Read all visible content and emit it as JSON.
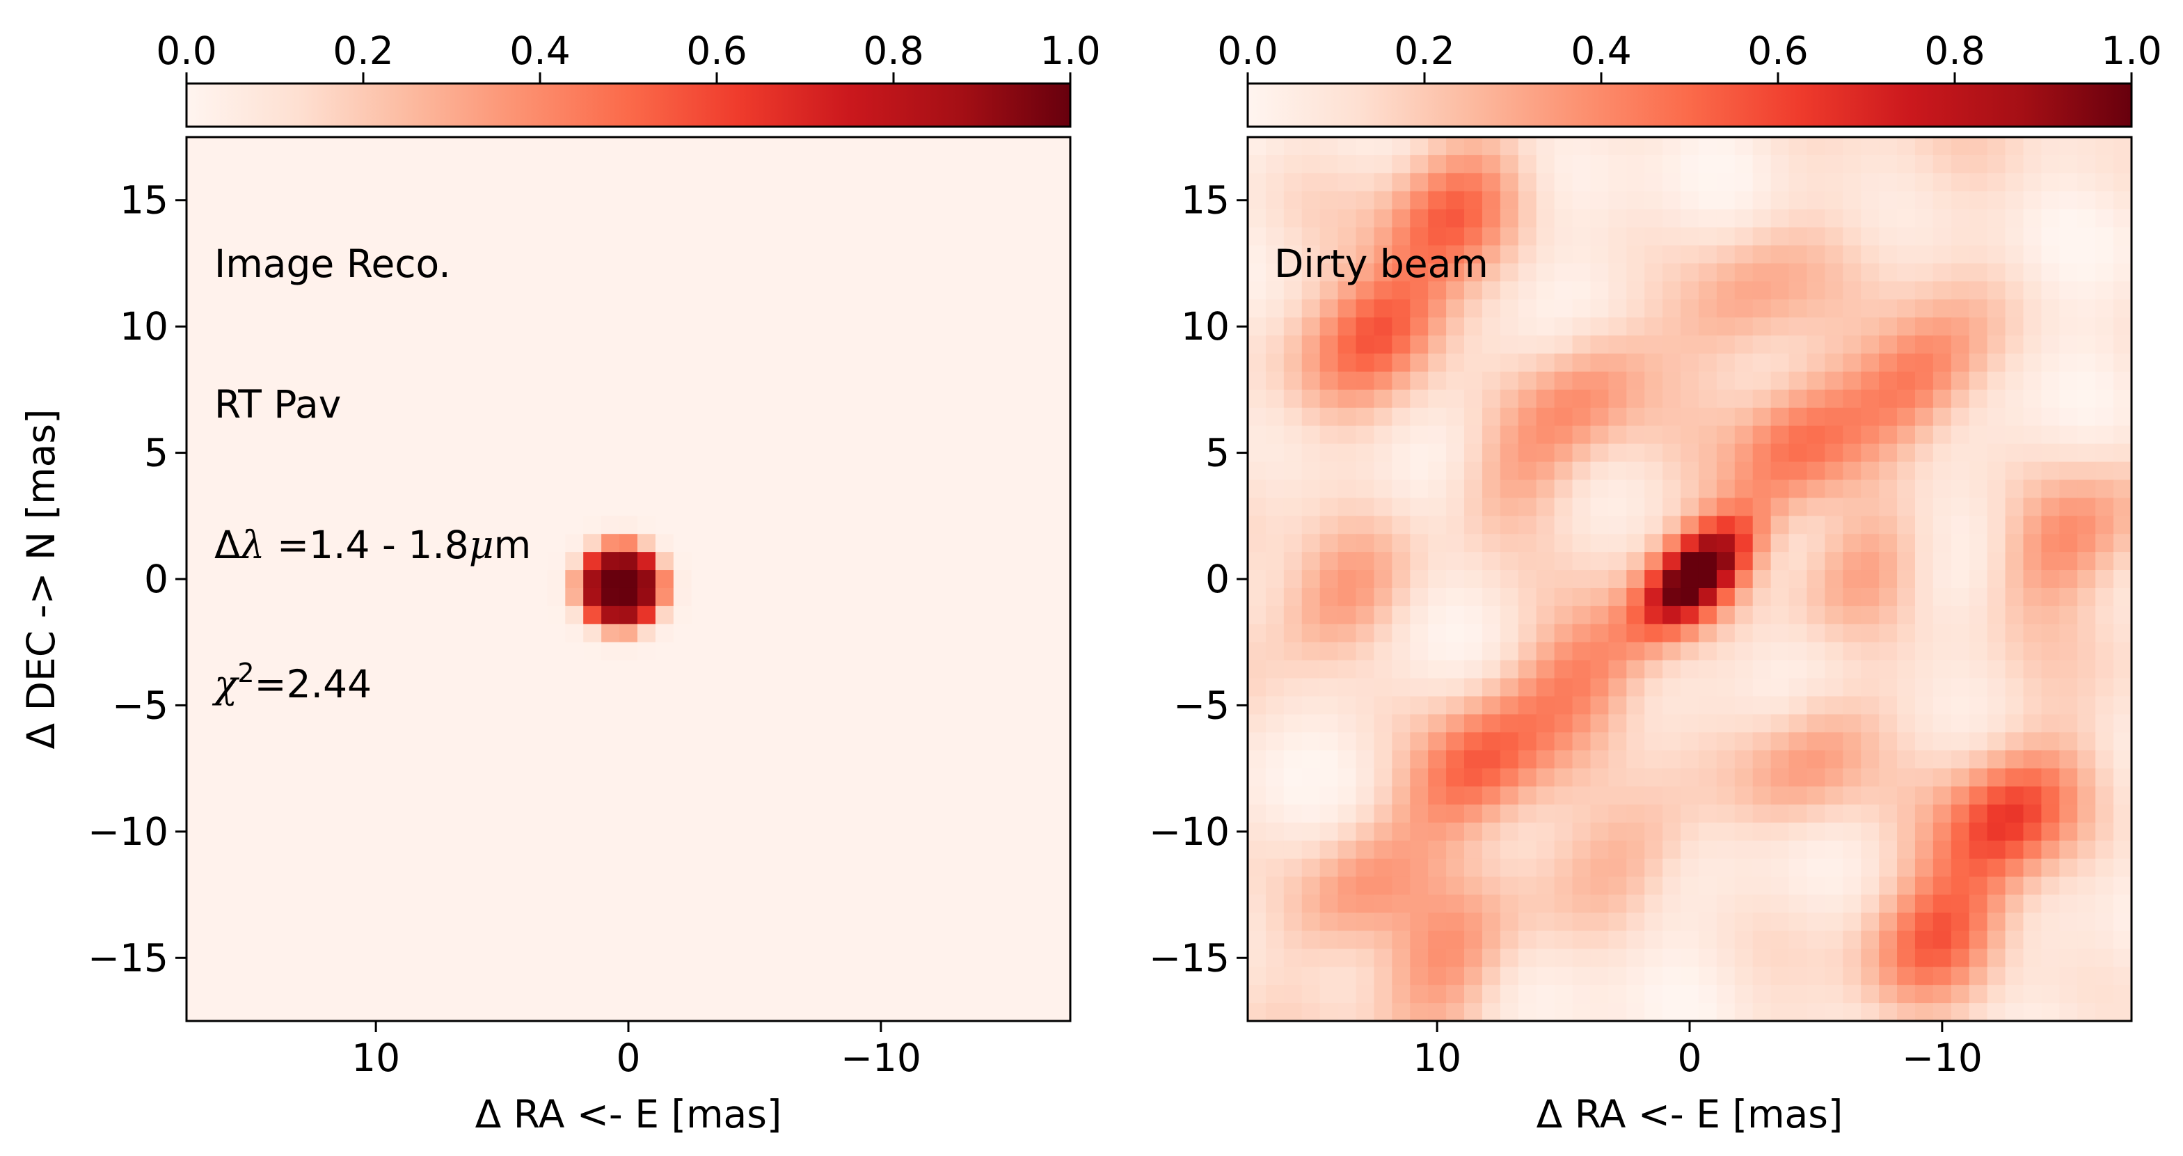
{
  "chart_data": [
    {
      "type": "heatmap",
      "panel": "left",
      "xlabel": "Δ RA <- E [mas]",
      "ylabel": "Δ DEC -> N [mas]",
      "xlim": [
        17.5,
        -17.5
      ],
      "ylim": [
        -17.5,
        17.5
      ],
      "x_ticks": [
        10,
        0,
        -10
      ],
      "x_tick_labels": [
        "10",
        "0",
        "−10"
      ],
      "y_ticks": [
        15,
        10,
        5,
        0,
        -5,
        -10,
        -15
      ],
      "y_tick_labels": [
        "15",
        "10",
        "5",
        "0",
        "−5",
        "−10",
        "−15"
      ],
      "colorbar": {
        "position": "top",
        "range": [
          0.0,
          1.0
        ],
        "ticks": [
          0.0,
          0.2,
          0.4,
          0.6,
          0.8,
          1.0
        ],
        "tick_labels": [
          "0.0",
          "0.2",
          "0.4",
          "0.6",
          "0.8",
          "1.0"
        ],
        "colormap": "Reds"
      },
      "annotations": {
        "line1": "Image Reco.",
        "line2": "RT Pav",
        "line3_prefix": "Δ",
        "line3_symbol": "λ",
        "line3_value": " =1.4 - 1.8",
        "line3_unit_symbol": "μ",
        "line3_unit": "m",
        "line4_symbol": "χ",
        "line4_sup": "2",
        "line4_value": "=2.44"
      },
      "sources": [
        {
          "x": 0.3,
          "y": -0.3,
          "amplitude": 1.0,
          "sigma": 1.3
        }
      ],
      "grid": false
    },
    {
      "type": "heatmap",
      "panel": "right",
      "xlabel": "Δ RA <- E [mas]",
      "ylabel": "",
      "xlim": [
        17.5,
        -17.5
      ],
      "ylim": [
        -17.5,
        17.5
      ],
      "x_ticks": [
        10,
        0,
        -10
      ],
      "x_tick_labels": [
        "10",
        "0",
        "−10"
      ],
      "y_ticks": [
        15,
        10,
        5,
        0,
        -5,
        -10,
        -15
      ],
      "y_tick_labels": [
        "15",
        "10",
        "5",
        "0",
        "−5",
        "−10",
        "−15"
      ],
      "colorbar": {
        "position": "top",
        "range": [
          0.0,
          1.0
        ],
        "ticks": [
          0.0,
          0.2,
          0.4,
          0.6,
          0.8,
          1.0
        ],
        "tick_labels": [
          "0.0",
          "0.2",
          "0.4",
          "0.6",
          "0.8",
          "1.0"
        ],
        "colormap": "Reds"
      },
      "annotations": {
        "line1": "Dirty beam"
      },
      "central_peak": {
        "x": -0.3,
        "y": 0.2,
        "amplitude": 1.0
      },
      "sidelobes": [
        {
          "x": 12,
          "y": 10,
          "amplitude": 0.45
        },
        {
          "x": 9.5,
          "y": 14.5,
          "amplitude": 0.35
        },
        {
          "x": -9,
          "y": 8,
          "amplitude": 0.42
        },
        {
          "x": -12.5,
          "y": -9.5,
          "amplitude": 0.5
        },
        {
          "x": 8.5,
          "y": -7.5,
          "amplitude": 0.45
        },
        {
          "x": 4,
          "y": 7.5,
          "amplitude": 0.3
        },
        {
          "x": -4,
          "y": 5,
          "amplitude": 0.33
        },
        {
          "x": -5,
          "y": -7,
          "amplitude": 0.3
        },
        {
          "x": 14,
          "y": -1,
          "amplitude": 0.3
        },
        {
          "x": 4,
          "y": -3.5,
          "amplitude": 0.3
        },
        {
          "x": -15,
          "y": 1.5,
          "amplitude": 0.3
        },
        {
          "x": 13.5,
          "y": -12.5,
          "amplitude": 0.25
        },
        {
          "x": -10,
          "y": -14,
          "amplitude": 0.38
        },
        {
          "x": 9.5,
          "y": -15,
          "amplitude": 0.25
        },
        {
          "x": 7,
          "y": 4,
          "amplitude": 0.22
        },
        {
          "x": -7,
          "y": 0.5,
          "amplitude": 0.25
        },
        {
          "x": 2,
          "y": -10.5,
          "amplitude": 0.22
        },
        {
          "x": -2,
          "y": 11,
          "amplitude": 0.22
        }
      ],
      "grid": false
    }
  ]
}
